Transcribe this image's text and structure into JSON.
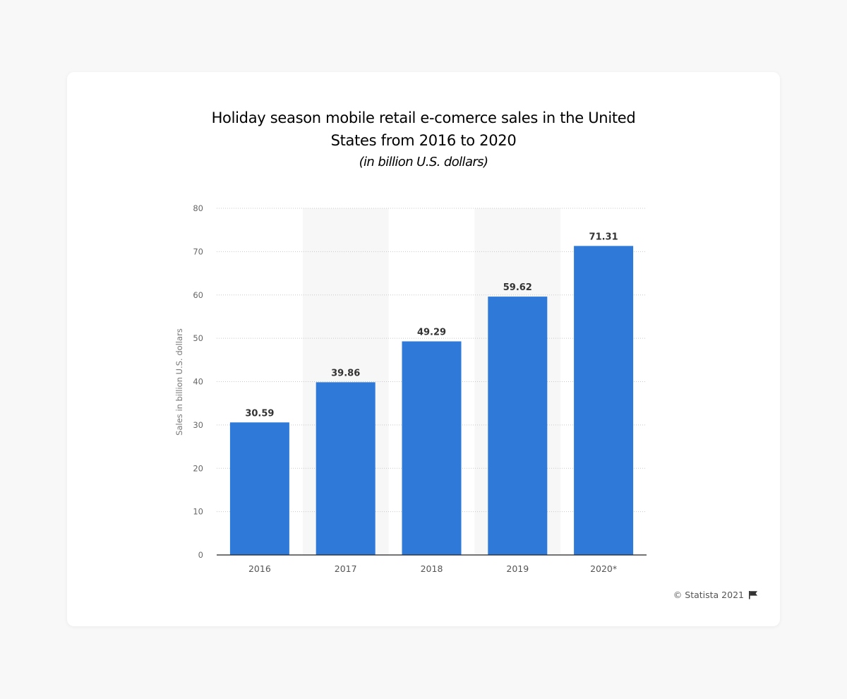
{
  "chart_data": {
    "type": "bar",
    "title": "Holiday season mobile retail e-comerce sales in the United States from 2016 to 2020",
    "title_lines": [
      "Holiday season mobile retail e-comerce sales in the United",
      "States from 2016 to 2020"
    ],
    "subtitle": "(in billion U.S. dollars)",
    "xlabel": "",
    "ylabel": "Sales in billion U.S. dollars",
    "categories": [
      "2016",
      "2017",
      "2018",
      "2019",
      "2020*"
    ],
    "values": [
      30.59,
      39.86,
      49.29,
      59.62,
      71.31
    ],
    "value_labels": [
      "30.59",
      "39.86",
      "49.29",
      "59.62",
      "71.31"
    ],
    "ylim": [
      0,
      80
    ],
    "yticks": [
      0,
      10,
      20,
      30,
      40,
      50,
      60,
      70,
      80
    ],
    "grid": true,
    "bar_color": "#2f7ad9",
    "alt_band_color": "#f7f7f7"
  },
  "footer": {
    "copyright": "© Statista 2021",
    "flag_icon": "flag-icon"
  }
}
